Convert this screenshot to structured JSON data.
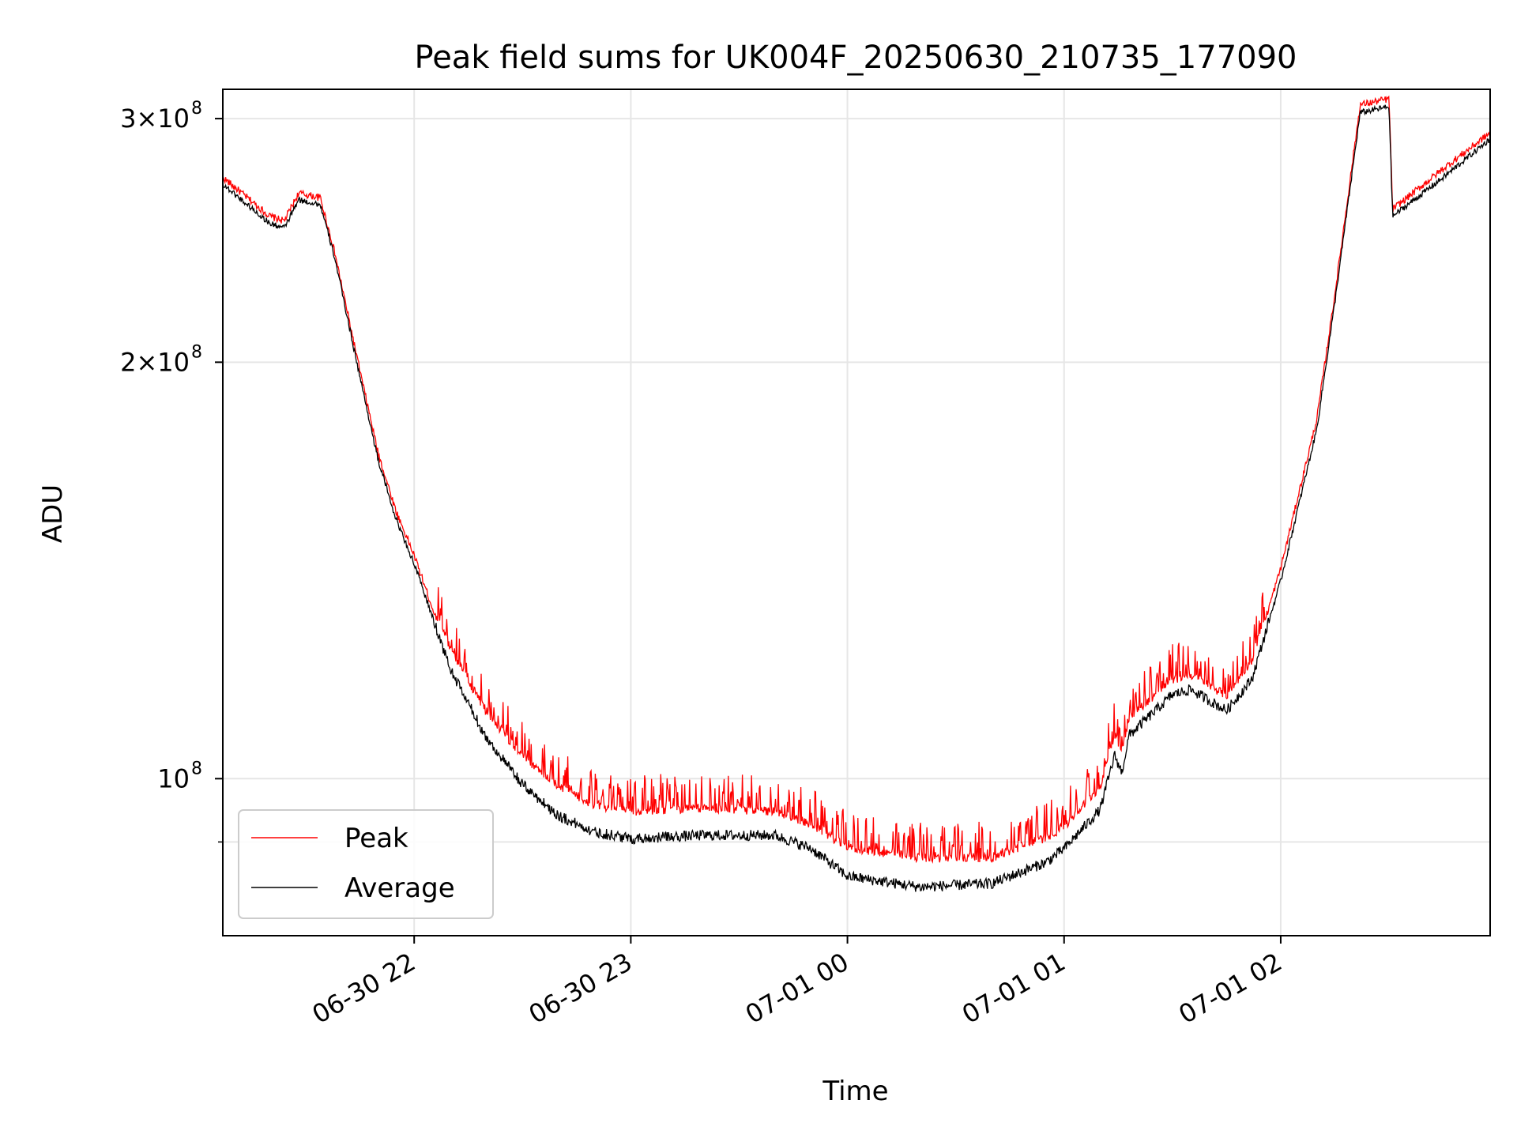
{
  "chart_data": {
    "type": "line",
    "title": "Peak field sums for UK004F_20250630_210735_177090",
    "xlabel": "Time",
    "ylabel": "ADU",
    "y_scale": "log",
    "ylim": [
      77000000,
      315000000
    ],
    "xlim": [
      "2025-06-30 21:07",
      "2025-07-01 02:58"
    ],
    "grid": true,
    "legend_position": "lower-left",
    "x_ticks": [
      {
        "value": "2025-06-30 22:00",
        "label": "06-30 22"
      },
      {
        "value": "2025-06-30 23:00",
        "label": "06-30 23"
      },
      {
        "value": "2025-07-01 00:00",
        "label": "07-01 00"
      },
      {
        "value": "2025-07-01 01:00",
        "label": "07-01 01"
      },
      {
        "value": "2025-07-01 02:00",
        "label": "07-01 02"
      }
    ],
    "y_major_ticks": [
      {
        "value": 100000000,
        "base": "10",
        "exp": "8"
      },
      {
        "value": 200000000,
        "base": "2×10",
        "exp": "8"
      },
      {
        "value": 300000000,
        "base": "3×10",
        "exp": "8"
      }
    ],
    "y_minor_ticks": [
      90000000
    ],
    "series": [
      {
        "name": "Peak",
        "color": "#ff0000",
        "x": [
          "2025-06-30 21:07",
          "2025-06-30 21:20",
          "2025-06-30 21:24",
          "2025-06-30 21:28",
          "2025-06-30 21:34",
          "2025-06-30 21:38",
          "2025-06-30 21:45",
          "2025-06-30 21:50",
          "2025-06-30 21:55",
          "2025-06-30 22:00",
          "2025-06-30 22:05",
          "2025-06-30 22:10",
          "2025-06-30 22:20",
          "2025-06-30 22:30",
          "2025-06-30 22:40",
          "2025-06-30 22:50",
          "2025-06-30 23:00",
          "2025-06-30 23:20",
          "2025-06-30 23:40",
          "2025-06-30 23:50",
          "2025-07-01 00:00",
          "2025-07-01 00:20",
          "2025-07-01 00:40",
          "2025-07-01 00:55",
          "2025-07-01 01:00",
          "2025-07-01 01:10",
          "2025-07-01 01:14",
          "2025-07-01 01:16",
          "2025-07-01 01:18",
          "2025-07-01 01:30",
          "2025-07-01 01:35",
          "2025-07-01 01:45",
          "2025-07-01 01:52",
          "2025-07-01 02:00",
          "2025-07-01 02:10",
          "2025-07-01 02:15",
          "2025-07-01 02:22",
          "2025-07-01 02:30",
          "2025-07-01 02:31",
          "2025-07-01 02:45",
          "2025-07-01 02:58"
        ],
        "y": [
          272000000,
          255000000,
          253000000,
          265000000,
          263000000,
          240000000,
          197000000,
          172000000,
          156000000,
          145000000,
          133000000,
          123000000,
          111000000,
          103000000,
          98000000,
          95000000,
          94000000,
          94500000,
          94000000,
          92000000,
          88500000,
          87000000,
          87000000,
          90000000,
          91500000,
          98000000,
          107000000,
          104000000,
          110000000,
          117000000,
          118000000,
          114000000,
          121000000,
          142000000,
          182000000,
          224000000,
          307000000,
          310000000,
          258000000,
          276000000,
          293000000
        ]
      },
      {
        "name": "Average",
        "color": "#000000",
        "x": [
          "2025-06-30 21:07",
          "2025-06-30 21:20",
          "2025-06-30 21:24",
          "2025-06-30 21:28",
          "2025-06-30 21:34",
          "2025-06-30 21:38",
          "2025-06-30 21:45",
          "2025-06-30 21:50",
          "2025-06-30 21:55",
          "2025-06-30 22:00",
          "2025-06-30 22:05",
          "2025-06-30 22:10",
          "2025-06-30 22:20",
          "2025-06-30 22:30",
          "2025-06-30 22:40",
          "2025-06-30 22:50",
          "2025-06-30 23:00",
          "2025-06-30 23:20",
          "2025-06-30 23:40",
          "2025-06-30 23:50",
          "2025-07-01 00:00",
          "2025-07-01 00:20",
          "2025-07-01 00:40",
          "2025-07-01 00:55",
          "2025-07-01 01:00",
          "2025-07-01 01:10",
          "2025-07-01 01:14",
          "2025-07-01 01:16",
          "2025-07-01 01:18",
          "2025-07-01 01:30",
          "2025-07-01 01:35",
          "2025-07-01 01:45",
          "2025-07-01 01:52",
          "2025-07-01 02:00",
          "2025-07-01 02:10",
          "2025-07-01 02:15",
          "2025-07-01 02:22",
          "2025-07-01 02:30",
          "2025-07-01 02:31",
          "2025-07-01 02:45",
          "2025-07-01 02:58"
        ],
        "y": [
          269000000,
          252000000,
          250000000,
          262000000,
          260000000,
          238000000,
          195000000,
          170000000,
          154000000,
          143000000,
          131000000,
          120000000,
          107000000,
          99000000,
          94000000,
          91500000,
          90500000,
          91000000,
          91000000,
          89000000,
          85000000,
          83500000,
          84000000,
          87000000,
          89000000,
          95000000,
          104000000,
          101000000,
          107500000,
          115000000,
          116000000,
          112000000,
          118000000,
          139000000,
          179000000,
          221000000,
          303000000,
          306000000,
          255000000,
          272000000,
          290000000
        ]
      }
    ]
  }
}
